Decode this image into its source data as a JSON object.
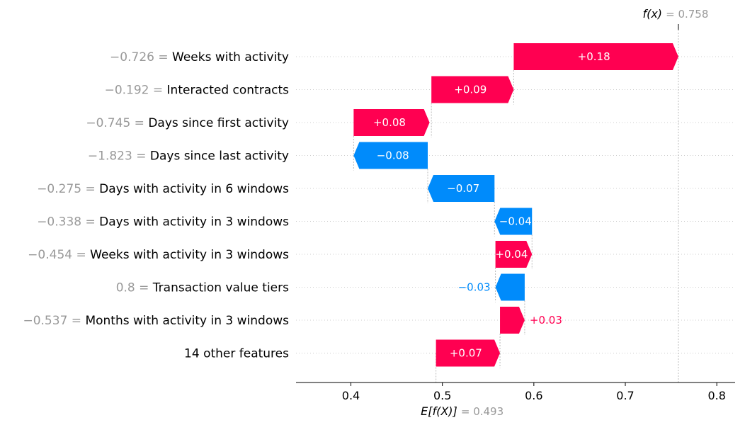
{
  "chart_data": {
    "type": "waterfall",
    "title": "",
    "xlabel": "",
    "ylabel": "",
    "base_value": 0.493,
    "output_value": 0.758,
    "base_label_main": "E[f(X)]",
    "base_label_value": "= 0.493",
    "output_label_main": "f(x)",
    "output_label_value": "= 0.758",
    "xlim": [
      0.34,
      0.82
    ],
    "xticks": [
      0.4,
      0.5,
      0.6,
      0.7,
      0.8
    ],
    "xtick_labels": [
      "0.4",
      "0.5",
      "0.6",
      "0.7",
      "0.8"
    ],
    "grid": true,
    "colors": {
      "positive": "#ff0051",
      "negative": "#008bfb",
      "feature_value": "#999999",
      "text": "#000000"
    },
    "features": [
      {
        "label": "Weeks with activity",
        "value_text": "−0.726 =",
        "start": 0.578,
        "end": 0.758,
        "display": "+0.18"
      },
      {
        "label": "Interacted contracts",
        "value_text": "−0.192 =",
        "start": 0.488,
        "end": 0.578,
        "display": "+0.09"
      },
      {
        "label": "Days since first activity",
        "value_text": "−0.745 =",
        "start": 0.403,
        "end": 0.486,
        "display": "+0.08"
      },
      {
        "label": "Days since last activity",
        "value_text": "−1.823 =",
        "start": 0.484,
        "end": 0.403,
        "display": "−0.08"
      },
      {
        "label": "Days with activity in 6 windows",
        "value_text": "−0.275 =",
        "start": 0.557,
        "end": 0.484,
        "display": "−0.07"
      },
      {
        "label": "Days with activity in 3 windows",
        "value_text": "−0.338 =",
        "start": 0.598,
        "end": 0.557,
        "display": "−0.04"
      },
      {
        "label": "Weeks with activity in 3 windows",
        "value_text": "−0.454 =",
        "start": 0.558,
        "end": 0.598,
        "display": "+0.04"
      },
      {
        "label": "Transaction value tiers",
        "value_text": "0.8 =",
        "start": 0.59,
        "end": 0.558,
        "display": "−0.03"
      },
      {
        "label": "Months with activity in 3 windows",
        "value_text": "−0.537 =",
        "start": 0.563,
        "end": 0.59,
        "display": "+0.03"
      },
      {
        "label": "14 other features",
        "value_text": "",
        "start": 0.493,
        "end": 0.563,
        "display": "+0.07"
      }
    ]
  }
}
